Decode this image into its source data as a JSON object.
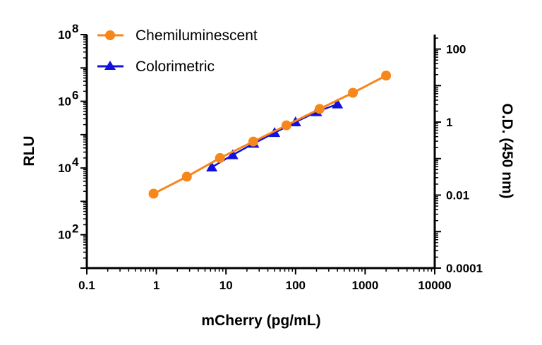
{
  "chart_data": {
    "type": "scatter",
    "xlabel": "mCherry (pg/mL)",
    "ylabel": "RLU",
    "y2label": "O.D. (450 nm)",
    "xscale": "log",
    "yscale": "log",
    "y2scale": "log",
    "xlim": [
      0.1,
      10000
    ],
    "ylim": [
      10,
      100000000
    ],
    "y2lim": [
      0.0001,
      250
    ],
    "x_ticks": [
      "0.1",
      "1",
      "10",
      "100",
      "1000",
      "10000"
    ],
    "y_ticks": [
      {
        "base": "10",
        "exp": "2"
      },
      {
        "base": "10",
        "exp": "4"
      },
      {
        "base": "10",
        "exp": "6"
      },
      {
        "base": "10",
        "exp": "8"
      }
    ],
    "y2_ticks": [
      "0.0001",
      "0.01",
      "1",
      "100"
    ],
    "grid": false,
    "legend": "top-left",
    "series": [
      {
        "name": "Chemiluminescent",
        "axis": "left",
        "color": "#f7861b",
        "marker": "circle",
        "x": [
          0.91,
          2.74,
          8.2,
          24.7,
          74,
          222,
          667,
          2000
        ],
        "y": [
          1700,
          5500,
          20000,
          62000,
          190000,
          590000,
          1800000,
          5900000
        ]
      },
      {
        "name": "Colorimetric",
        "axis": "right",
        "color": "#1010e0",
        "marker": "triangle",
        "x": [
          6.25,
          12.5,
          25,
          50,
          100,
          200,
          400
        ],
        "y": [
          0.058,
          0.126,
          0.26,
          0.51,
          1.0,
          1.9,
          3.1
        ]
      }
    ]
  }
}
